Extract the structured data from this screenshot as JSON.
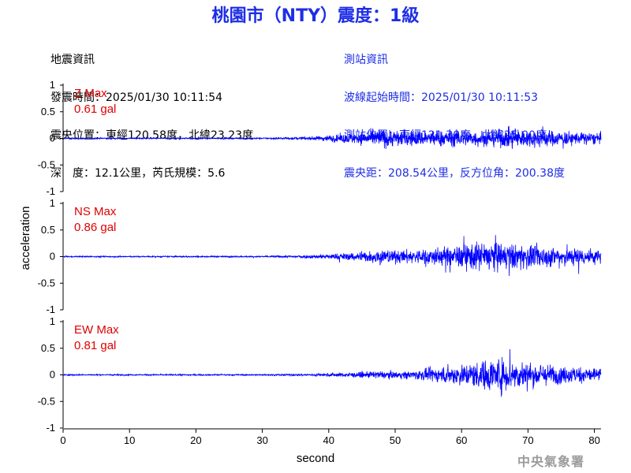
{
  "title": "桃園市（NTY）震度：1級",
  "event_info": {
    "heading": "地震資訊",
    "time": "發震時間：2025/01/30 10:11:54",
    "location": "震央位置：東經120.58度，北緯23.23度",
    "depth_magnitude": "深　度：12.1公里，芮氏規模：5.6"
  },
  "station_info": {
    "heading": "測站資訊",
    "wave_start": "波線起始時間：2025/01/30 10:11:53",
    "location": "測站位置：東經121.30度，北緯25.00度",
    "distance_azimuth": "震央距：208.54公里，反方位角：200.38度"
  },
  "agency": "中央氣象署",
  "colors": {
    "title": "#1e2ee6",
    "trace": "#0000ff",
    "max_label": "#e00000",
    "station_text": "#1e2ee6"
  },
  "chart_data": {
    "type": "line",
    "xlabel": "second",
    "ylabel": "acceleration",
    "xlim": [
      0,
      81
    ],
    "ylim": [
      -1,
      1
    ],
    "xticks": [
      "0",
      "10",
      "20",
      "30",
      "40",
      "50",
      "60",
      "70",
      "80"
    ],
    "yticks": [
      "1",
      "0.5",
      "0",
      "-0.5",
      "-1"
    ],
    "grid": false,
    "panels": [
      {
        "component": "Z",
        "max_label": "Z Max",
        "max_value": "0.61 gal",
        "envelope": {
          "t": [
            0,
            30,
            35,
            38,
            40,
            43,
            46,
            48,
            50,
            53,
            56,
            60,
            63,
            66,
            68,
            70,
            72,
            75,
            78,
            81
          ],
          "amp": [
            0.02,
            0.02,
            0.04,
            0.06,
            0.1,
            0.16,
            0.22,
            0.3,
            0.26,
            0.24,
            0.26,
            0.27,
            0.25,
            0.27,
            0.36,
            0.24,
            0.3,
            0.22,
            0.2,
            0.18
          ]
        }
      },
      {
        "component": "NS",
        "max_label": "NS Max",
        "max_value": "0.86 gal",
        "envelope": {
          "t": [
            0,
            30,
            35,
            40,
            43,
            46,
            48,
            50,
            53,
            56,
            58,
            60,
            62,
            64,
            66,
            68,
            70,
            73,
            76,
            79,
            81
          ],
          "amp": [
            0.02,
            0.02,
            0.04,
            0.08,
            0.12,
            0.18,
            0.24,
            0.2,
            0.22,
            0.28,
            0.3,
            0.38,
            0.45,
            0.5,
            0.42,
            0.4,
            0.38,
            0.32,
            0.3,
            0.26,
            0.22
          ]
        }
      },
      {
        "component": "EW",
        "max_label": "EW Max",
        "max_value": "0.81 gal",
        "envelope": {
          "t": [
            0,
            30,
            35,
            40,
            43,
            46,
            48,
            50,
            53,
            56,
            59,
            62,
            64,
            66,
            68,
            70,
            72,
            75,
            78,
            81
          ],
          "amp": [
            0.02,
            0.02,
            0.03,
            0.05,
            0.07,
            0.1,
            0.12,
            0.1,
            0.14,
            0.22,
            0.3,
            0.4,
            0.5,
            0.55,
            0.48,
            0.4,
            0.34,
            0.28,
            0.26,
            0.22
          ]
        }
      }
    ]
  }
}
